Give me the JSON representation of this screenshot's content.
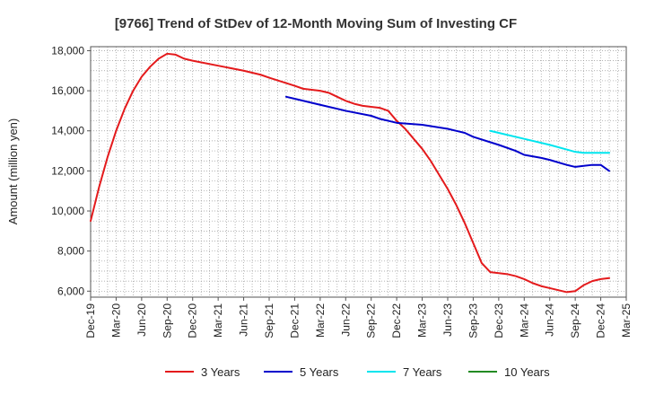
{
  "chart_data": {
    "type": "line",
    "title": "[9766]  Trend of StDev of 12-Month Moving Sum of Investing CF",
    "xlabel": "",
    "ylabel": "Amount (million yen)",
    "ylim": [
      5700,
      18200
    ],
    "yticks": [
      6000,
      8000,
      10000,
      12000,
      14000,
      16000,
      18000
    ],
    "ytick_labels": [
      "6,000",
      "8,000",
      "10,000",
      "12,000",
      "14,000",
      "16,000",
      "18,000"
    ],
    "x_start": "Dec-19",
    "x_end": "Mar-25",
    "x_ticks": [
      "Dec-19",
      "Mar-20",
      "Jun-20",
      "Sep-20",
      "Dec-20",
      "Mar-21",
      "Jun-21",
      "Sep-21",
      "Dec-21",
      "Mar-22",
      "Jun-22",
      "Sep-22",
      "Dec-22",
      "Mar-23",
      "Jun-23",
      "Sep-23",
      "Dec-23",
      "Mar-24",
      "Jun-24",
      "Sep-24",
      "Dec-24",
      "Mar-25"
    ],
    "grid": true,
    "legend_position": "bottom",
    "series": [
      {
        "name": "3 Years",
        "color": "#e41a1c",
        "points": [
          [
            "Dec-19",
            9500
          ],
          [
            "Jan-20",
            11200
          ],
          [
            "Feb-20",
            12700
          ],
          [
            "Mar-20",
            14000
          ],
          [
            "Apr-20",
            15100
          ],
          [
            "May-20",
            16000
          ],
          [
            "Jun-20",
            16700
          ],
          [
            "Jul-20",
            17200
          ],
          [
            "Aug-20",
            17600
          ],
          [
            "Sep-20",
            17850
          ],
          [
            "Oct-20",
            17800
          ],
          [
            "Nov-20",
            17600
          ],
          [
            "Dec-20",
            17500
          ],
          [
            "Mar-21",
            17250
          ],
          [
            "Jun-21",
            17000
          ],
          [
            "Aug-21",
            16800
          ],
          [
            "Sep-21",
            16650
          ],
          [
            "Dec-21",
            16250
          ],
          [
            "Jan-22",
            16100
          ],
          [
            "Mar-22",
            16000
          ],
          [
            "Apr-22",
            15900
          ],
          [
            "May-22",
            15700
          ],
          [
            "Jun-22",
            15500
          ],
          [
            "Jul-22",
            15350
          ],
          [
            "Aug-22",
            15250
          ],
          [
            "Sep-22",
            15200
          ],
          [
            "Oct-22",
            15150
          ],
          [
            "Nov-22",
            15000
          ],
          [
            "Dec-22",
            14500
          ],
          [
            "Jan-23",
            14100
          ],
          [
            "Feb-23",
            13600
          ],
          [
            "Mar-23",
            13100
          ],
          [
            "Apr-23",
            12500
          ],
          [
            "May-23",
            11800
          ],
          [
            "Jun-23",
            11100
          ],
          [
            "Jul-23",
            10300
          ],
          [
            "Aug-23",
            9400
          ],
          [
            "Sep-23",
            8400
          ],
          [
            "Oct-23",
            7400
          ],
          [
            "Nov-23",
            6950
          ],
          [
            "Dec-23",
            6900
          ],
          [
            "Jan-24",
            6850
          ],
          [
            "Feb-24",
            6750
          ],
          [
            "Mar-24",
            6600
          ],
          [
            "Apr-24",
            6400
          ],
          [
            "May-24",
            6250
          ],
          [
            "Jun-24",
            6150
          ],
          [
            "Jul-24",
            6050
          ],
          [
            "Aug-24",
            5950
          ],
          [
            "Sep-24",
            6000
          ],
          [
            "Oct-24",
            6300
          ],
          [
            "Nov-24",
            6500
          ],
          [
            "Dec-24",
            6600
          ],
          [
            "Jan-25",
            6650
          ]
        ]
      },
      {
        "name": "5 Years",
        "color": "#0000cc",
        "points": [
          [
            "Nov-21",
            15700
          ],
          [
            "Dec-21",
            15600
          ],
          [
            "Mar-22",
            15300
          ],
          [
            "Jun-22",
            15000
          ],
          [
            "Sep-22",
            14750
          ],
          [
            "Oct-22",
            14600
          ],
          [
            "Nov-22",
            14500
          ],
          [
            "Dec-22",
            14400
          ],
          [
            "Mar-23",
            14300
          ],
          [
            "Jun-23",
            14100
          ],
          [
            "Aug-23",
            13900
          ],
          [
            "Sep-23",
            13700
          ],
          [
            "Dec-23",
            13300
          ],
          [
            "Feb-24",
            13000
          ],
          [
            "Mar-24",
            12800
          ],
          [
            "May-24",
            12650
          ],
          [
            "Jun-24",
            12550
          ],
          [
            "Aug-24",
            12300
          ],
          [
            "Sep-24",
            12200
          ],
          [
            "Oct-24",
            12250
          ],
          [
            "Nov-24",
            12300
          ],
          [
            "Dec-24",
            12300
          ],
          [
            "Jan-25",
            12000
          ]
        ]
      },
      {
        "name": "7 Years",
        "color": "#00e5ee",
        "points": [
          [
            "Nov-23",
            14000
          ],
          [
            "Dec-23",
            13900
          ],
          [
            "Mar-24",
            13600
          ],
          [
            "Jun-24",
            13300
          ],
          [
            "Sep-24",
            12950
          ],
          [
            "Oct-24",
            12900
          ],
          [
            "Dec-24",
            12900
          ],
          [
            "Jan-25",
            12900
          ]
        ]
      },
      {
        "name": "10 Years",
        "color": "#228b22",
        "points": []
      }
    ]
  }
}
